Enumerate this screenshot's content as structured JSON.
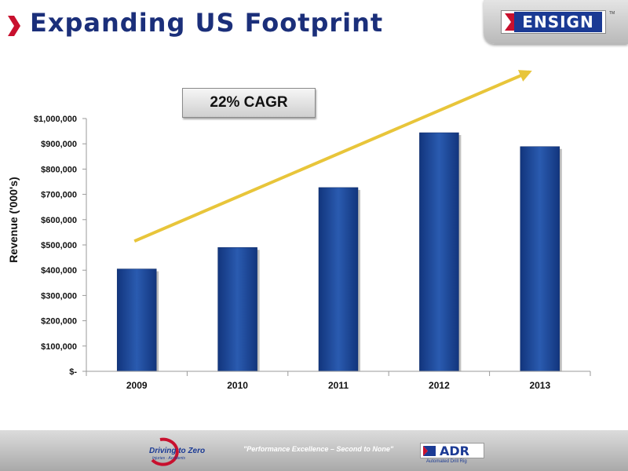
{
  "slide": {
    "title": "Expanding US Footprint",
    "logo_text": "ENSIGN",
    "logo_trademark": "TM",
    "cagr_label": "22% CAGR"
  },
  "footer": {
    "driving_to_zero": "Driving to Zero",
    "driving_to_zero_sub": "Injuries · Accidents",
    "tagline": "\"Performance Excellence – Second to None\"",
    "adr_text": "ADR",
    "adr_sub": "Automated Drill Rig"
  },
  "colors": {
    "title": "#1b2f7a",
    "chevron": "#c8102e",
    "bar": "#1f4e9e",
    "trend_arrow": "#e8c53a",
    "axis": "#9a9a9a"
  },
  "chart_data": {
    "type": "bar",
    "categories": [
      "2009",
      "2010",
      "2011",
      "2012",
      "2013"
    ],
    "values": [
      405000,
      490000,
      727000,
      944000,
      889000
    ],
    "title": "",
    "xlabel": "",
    "ylabel": "Revenue ('000's)",
    "ylim": [
      0,
      1000000
    ],
    "yticks": [
      0,
      100000,
      200000,
      300000,
      400000,
      500000,
      600000,
      700000,
      800000,
      900000,
      1000000
    ],
    "ytick_labels": [
      "$-",
      "$100,000",
      "$200,000",
      "$300,000",
      "$400,000",
      "$500,000",
      "$600,000",
      "$700,000",
      "$800,000",
      "$900,000",
      "$1,000,000"
    ],
    "grid": false,
    "legend": "none",
    "annotation": "22% CAGR",
    "trend_arrow": {
      "from_value": 515000,
      "to_value": 1185000
    }
  }
}
